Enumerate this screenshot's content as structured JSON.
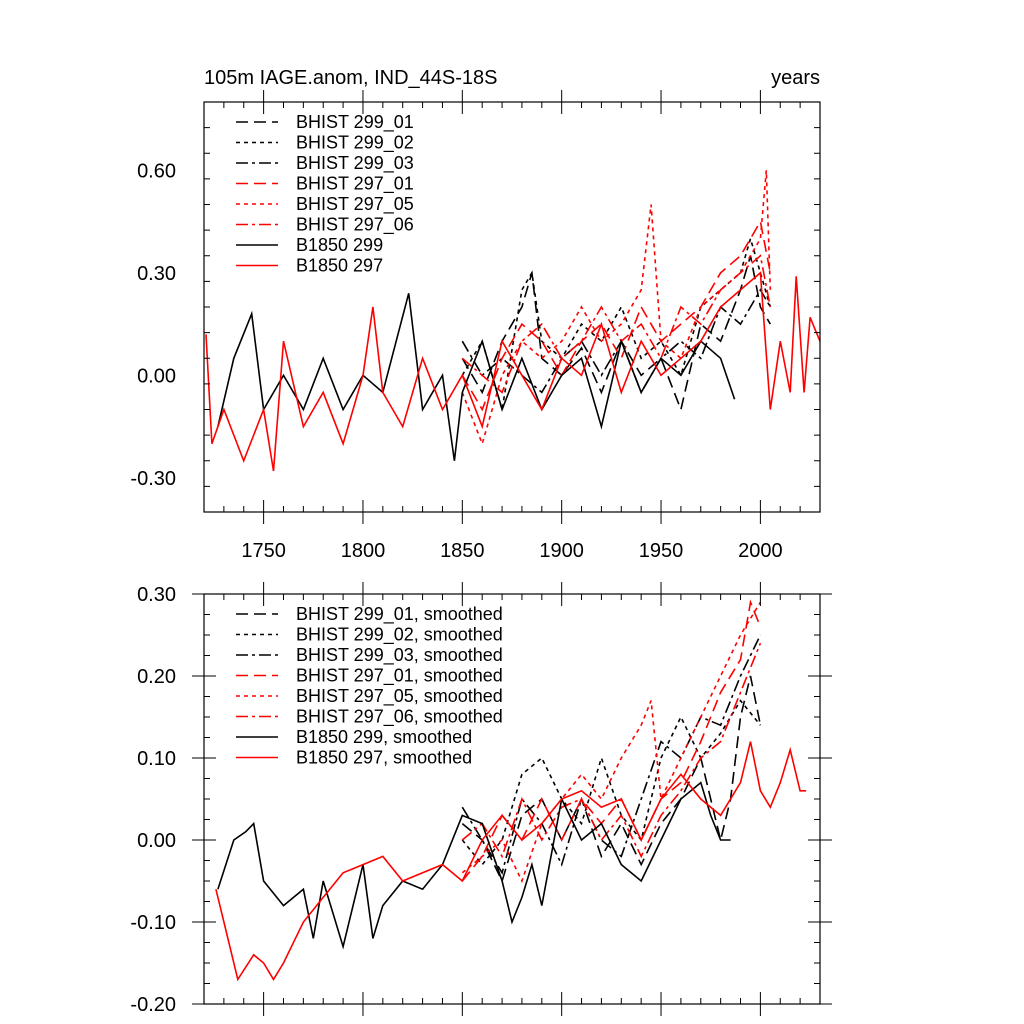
{
  "chart_data": [
    {
      "type": "line",
      "title_left": "105m IAGE.anom, IND_44S-18S",
      "title_right": "years",
      "xlim": [
        1720,
        2030
      ],
      "ylim": [
        -0.4,
        0.8
      ],
      "xticks": [
        1750,
        1800,
        1850,
        1900,
        1950,
        2000
      ],
      "xtick_labels": [
        "1750",
        "1800",
        "1850",
        "1900",
        "1950",
        "2000"
      ],
      "yticks": [
        -0.3,
        0.0,
        0.3,
        0.6
      ],
      "ytick_labels": [
        "-0.30",
        "0.00",
        "0.30",
        "0.60"
      ],
      "legend_position": "top-left",
      "series": [
        {
          "name": "BHIST 299_01",
          "color": "#000000",
          "dash": "12,6",
          "x": [
            1850,
            1860,
            1870,
            1880,
            1885,
            1890,
            1900,
            1910,
            1920,
            1930,
            1940,
            1950,
            1960,
            1970,
            1980,
            1990,
            1995,
            2000,
            2005
          ],
          "y": [
            0.05,
            -0.05,
            0.1,
            0.2,
            0.3,
            0.05,
            0.0,
            0.08,
            -0.05,
            0.1,
            0.0,
            0.05,
            -0.1,
            0.15,
            0.1,
            0.25,
            0.35,
            0.2,
            0.15
          ]
        },
        {
          "name": "BHIST 299_02",
          "color": "#000000",
          "dash": "4,4",
          "x": [
            1850,
            1860,
            1870,
            1880,
            1885,
            1890,
            1900,
            1910,
            1920,
            1930,
            1940,
            1950,
            1960,
            1970,
            1980,
            1990,
            1995,
            2000,
            2005
          ],
          "y": [
            0.0,
            0.1,
            -0.1,
            0.25,
            0.3,
            0.1,
            0.05,
            0.15,
            0.1,
            0.2,
            0.05,
            0.1,
            0.0,
            0.2,
            0.25,
            0.3,
            0.4,
            0.3,
            0.2
          ]
        },
        {
          "name": "BHIST 299_03",
          "color": "#000000",
          "dash": "12,4,3,4",
          "x": [
            1850,
            1860,
            1870,
            1880,
            1890,
            1900,
            1910,
            1920,
            1930,
            1940,
            1950,
            1960,
            1970,
            1980,
            1990,
            2000,
            2005
          ],
          "y": [
            0.1,
            0.0,
            0.05,
            0.0,
            -0.05,
            0.05,
            0.1,
            0.0,
            0.1,
            -0.05,
            0.05,
            0.1,
            0.05,
            0.2,
            0.15,
            0.25,
            0.2
          ]
        },
        {
          "name": "BHIST 297_01",
          "color": "#ff0000",
          "dash": "12,6",
          "x": [
            1850,
            1860,
            1870,
            1880,
            1890,
            1900,
            1910,
            1920,
            1930,
            1940,
            1950,
            1960,
            1970,
            1980,
            1990,
            2000,
            2005
          ],
          "y": [
            0.0,
            -0.1,
            0.05,
            0.15,
            0.1,
            0.0,
            0.1,
            0.15,
            0.05,
            0.2,
            0.1,
            0.15,
            0.2,
            0.3,
            0.35,
            0.45,
            0.3
          ]
        },
        {
          "name": "BHIST 297_05",
          "color": "#ff0000",
          "dash": "4,4",
          "x": [
            1850,
            1860,
            1870,
            1880,
            1890,
            1900,
            1910,
            1920,
            1930,
            1940,
            1945,
            1950,
            1960,
            1970,
            1980,
            1990,
            2000,
            2003,
            2005
          ],
          "y": [
            -0.05,
            -0.2,
            0.0,
            0.1,
            0.05,
            0.1,
            0.2,
            0.1,
            0.15,
            0.25,
            0.5,
            0.1,
            0.05,
            0.2,
            0.25,
            0.3,
            0.4,
            0.6,
            0.25
          ]
        },
        {
          "name": "BHIST 297_06",
          "color": "#ff0000",
          "dash": "12,4,3,4",
          "x": [
            1850,
            1860,
            1870,
            1880,
            1890,
            1900,
            1910,
            1920,
            1930,
            1940,
            1950,
            1960,
            1970,
            1980,
            1990,
            2000,
            2005
          ],
          "y": [
            0.05,
            0.0,
            -0.05,
            0.1,
            0.15,
            0.05,
            0.1,
            0.2,
            0.1,
            0.15,
            0.05,
            0.2,
            0.15,
            0.25,
            0.3,
            0.35,
            0.2
          ]
        },
        {
          "name": "B1850 299",
          "color": "#000000",
          "dash": "",
          "x": [
            1727,
            1735,
            1744,
            1750,
            1760,
            1770,
            1780,
            1790,
            1800,
            1810,
            1823,
            1830,
            1840,
            1846,
            1850,
            1860,
            1870,
            1880,
            1890,
            1900,
            1910,
            1920,
            1930,
            1940,
            1950,
            1960,
            1970,
            1980,
            1987
          ],
          "y": [
            -0.15,
            0.05,
            0.18,
            -0.1,
            0.0,
            -0.1,
            0.05,
            -0.1,
            0.0,
            -0.05,
            0.24,
            -0.1,
            0.0,
            -0.25,
            -0.05,
            0.1,
            -0.1,
            0.05,
            -0.1,
            0.0,
            0.05,
            -0.15,
            0.1,
            -0.05,
            0.05,
            0.0,
            0.1,
            0.05,
            -0.07
          ]
        },
        {
          "name": "B1850 297",
          "color": "#ff0000",
          "dash": "",
          "x": [
            1721,
            1724,
            1730,
            1740,
            1750,
            1755,
            1760,
            1770,
            1780,
            1790,
            1800,
            1805,
            1810,
            1820,
            1830,
            1840,
            1850,
            1860,
            1870,
            1880,
            1890,
            1900,
            1910,
            1920,
            1930,
            1940,
            1950,
            1960,
            1970,
            1980,
            1990,
            2000,
            2005,
            2010,
            2015,
            2018,
            2022,
            2025,
            2030
          ],
          "y": [
            0.12,
            -0.2,
            -0.1,
            -0.25,
            -0.1,
            -0.28,
            0.1,
            -0.15,
            -0.05,
            -0.2,
            0.0,
            0.2,
            -0.05,
            -0.15,
            0.05,
            -0.1,
            0.0,
            -0.15,
            0.1,
            0.0,
            -0.1,
            0.05,
            0.0,
            0.15,
            -0.05,
            0.1,
            0.0,
            0.05,
            0.1,
            0.2,
            0.25,
            0.3,
            -0.1,
            0.1,
            -0.05,
            0.29,
            -0.05,
            0.17,
            0.1
          ]
        }
      ]
    },
    {
      "type": "line",
      "xlim": [
        1720,
        2030
      ],
      "ylim": [
        -0.2,
        0.3
      ],
      "xticks": [
        1750,
        1800,
        1850,
        1900,
        1950,
        2000
      ],
      "yticks": [
        -0.2,
        -0.1,
        0.0,
        0.1,
        0.2,
        0.3
      ],
      "ytick_labels": [
        "-0.20",
        "-0.10",
        "0.00",
        "0.10",
        "0.20",
        "0.30"
      ],
      "legend_position": "top-left",
      "series": [
        {
          "name": "BHIST 299_01, smoothed",
          "color": "#000000",
          "dash": "12,6",
          "x": [
            1850,
            1860,
            1870,
            1880,
            1890,
            1900,
            1910,
            1920,
            1930,
            1940,
            1950,
            1960,
            1970,
            1980,
            1985,
            1990,
            1995,
            2000
          ],
          "y": [
            0.02,
            0.0,
            -0.05,
            0.03,
            0.05,
            0.0,
            0.05,
            -0.02,
            0.02,
            -0.03,
            0.02,
            0.05,
            0.1,
            0.0,
            0.05,
            0.15,
            0.2,
            0.14
          ]
        },
        {
          "name": "BHIST 299_02, smoothed",
          "color": "#000000",
          "dash": "4,4",
          "x": [
            1850,
            1860,
            1870,
            1880,
            1890,
            1900,
            1910,
            1920,
            1930,
            1940,
            1950,
            1960,
            1970,
            1980,
            1990,
            2000
          ],
          "y": [
            0.0,
            -0.03,
            0.0,
            0.08,
            0.1,
            0.05,
            0.02,
            0.1,
            0.03,
            0.0,
            0.1,
            0.15,
            0.1,
            0.13,
            0.17,
            0.14
          ]
        },
        {
          "name": "BHIST 299_03, smoothed",
          "color": "#000000",
          "dash": "12,4,3,4",
          "x": [
            1850,
            1860,
            1870,
            1880,
            1890,
            1900,
            1910,
            1920,
            1930,
            1940,
            1950,
            1960,
            1970,
            1980,
            1990,
            2000
          ],
          "y": [
            0.04,
            0.0,
            -0.04,
            0.05,
            0.02,
            -0.03,
            0.05,
            0.0,
            -0.02,
            0.05,
            0.12,
            0.1,
            0.15,
            0.14,
            0.2,
            0.25
          ]
        },
        {
          "name": "BHIST 297_01, smoothed",
          "color": "#ff0000",
          "dash": "12,6",
          "x": [
            1850,
            1860,
            1870,
            1880,
            1890,
            1900,
            1910,
            1920,
            1930,
            1940,
            1950,
            1960,
            1970,
            1980,
            1990,
            1995,
            2000
          ],
          "y": [
            -0.05,
            -0.02,
            0.03,
            0.0,
            0.05,
            0.0,
            0.05,
            0.02,
            0.05,
            0.0,
            0.05,
            0.07,
            0.12,
            0.18,
            0.22,
            0.29,
            0.26
          ]
        },
        {
          "name": "BHIST 297_05, smoothed",
          "color": "#ff0000",
          "dash": "4,4",
          "x": [
            1850,
            1860,
            1870,
            1880,
            1890,
            1900,
            1910,
            1920,
            1930,
            1940,
            1945,
            1950,
            1960,
            1970,
            1980,
            1990,
            2000
          ],
          "y": [
            -0.04,
            -0.02,
            0.0,
            -0.05,
            0.02,
            0.05,
            0.08,
            0.05,
            0.1,
            0.14,
            0.17,
            0.05,
            0.1,
            0.15,
            0.2,
            0.25,
            0.29
          ]
        },
        {
          "name": "BHIST 297_06, smoothed",
          "color": "#ff0000",
          "dash": "12,4,3,4",
          "x": [
            1850,
            1860,
            1870,
            1880,
            1890,
            1900,
            1910,
            1920,
            1930,
            1940,
            1950,
            1960,
            1970,
            1980,
            1990,
            2000
          ],
          "y": [
            0.0,
            0.02,
            -0.02,
            0.05,
            0.0,
            0.04,
            0.05,
            0.0,
            0.03,
            -0.02,
            0.03,
            0.06,
            0.1,
            0.12,
            0.18,
            0.24
          ]
        },
        {
          "name": "B1850 299, smoothed",
          "color": "#000000",
          "dash": "",
          "x": [
            1727,
            1735,
            1741,
            1745,
            1750,
            1760,
            1770,
            1775,
            1780,
            1790,
            1800,
            1805,
            1810,
            1820,
            1830,
            1840,
            1850,
            1860,
            1870,
            1875,
            1880,
            1885,
            1890,
            1900,
            1910,
            1920,
            1930,
            1940,
            1950,
            1960,
            1970,
            1975,
            1980,
            1985
          ],
          "y": [
            -0.06,
            0.0,
            0.01,
            0.02,
            -0.05,
            -0.08,
            -0.06,
            -0.12,
            -0.05,
            -0.13,
            -0.03,
            -0.12,
            -0.08,
            -0.05,
            -0.06,
            -0.03,
            0.03,
            0.02,
            -0.05,
            -0.1,
            -0.07,
            -0.03,
            -0.08,
            0.05,
            0.0,
            0.02,
            -0.03,
            -0.05,
            0.0,
            0.05,
            0.07,
            0.03,
            0.0,
            0.0
          ]
        },
        {
          "name": "B1850 297, smoothed",
          "color": "#ff0000",
          "dash": "",
          "x": [
            1726,
            1730,
            1737,
            1745,
            1750,
            1755,
            1760,
            1770,
            1780,
            1790,
            1800,
            1810,
            1820,
            1830,
            1840,
            1850,
            1860,
            1870,
            1880,
            1890,
            1900,
            1910,
            1920,
            1930,
            1940,
            1950,
            1960,
            1970,
            1980,
            1990,
            1995,
            2000,
            2005,
            2010,
            2015,
            2020,
            2023
          ],
          "y": [
            -0.06,
            -0.1,
            -0.17,
            -0.14,
            -0.15,
            -0.17,
            -0.15,
            -0.1,
            -0.07,
            -0.04,
            -0.03,
            -0.02,
            -0.05,
            -0.04,
            -0.03,
            -0.05,
            0.0,
            0.03,
            0.0,
            0.02,
            0.05,
            0.06,
            0.04,
            0.05,
            0.0,
            0.05,
            0.08,
            0.05,
            0.03,
            0.07,
            0.12,
            0.06,
            0.04,
            0.07,
            0.11,
            0.06,
            0.06
          ]
        }
      ]
    }
  ]
}
